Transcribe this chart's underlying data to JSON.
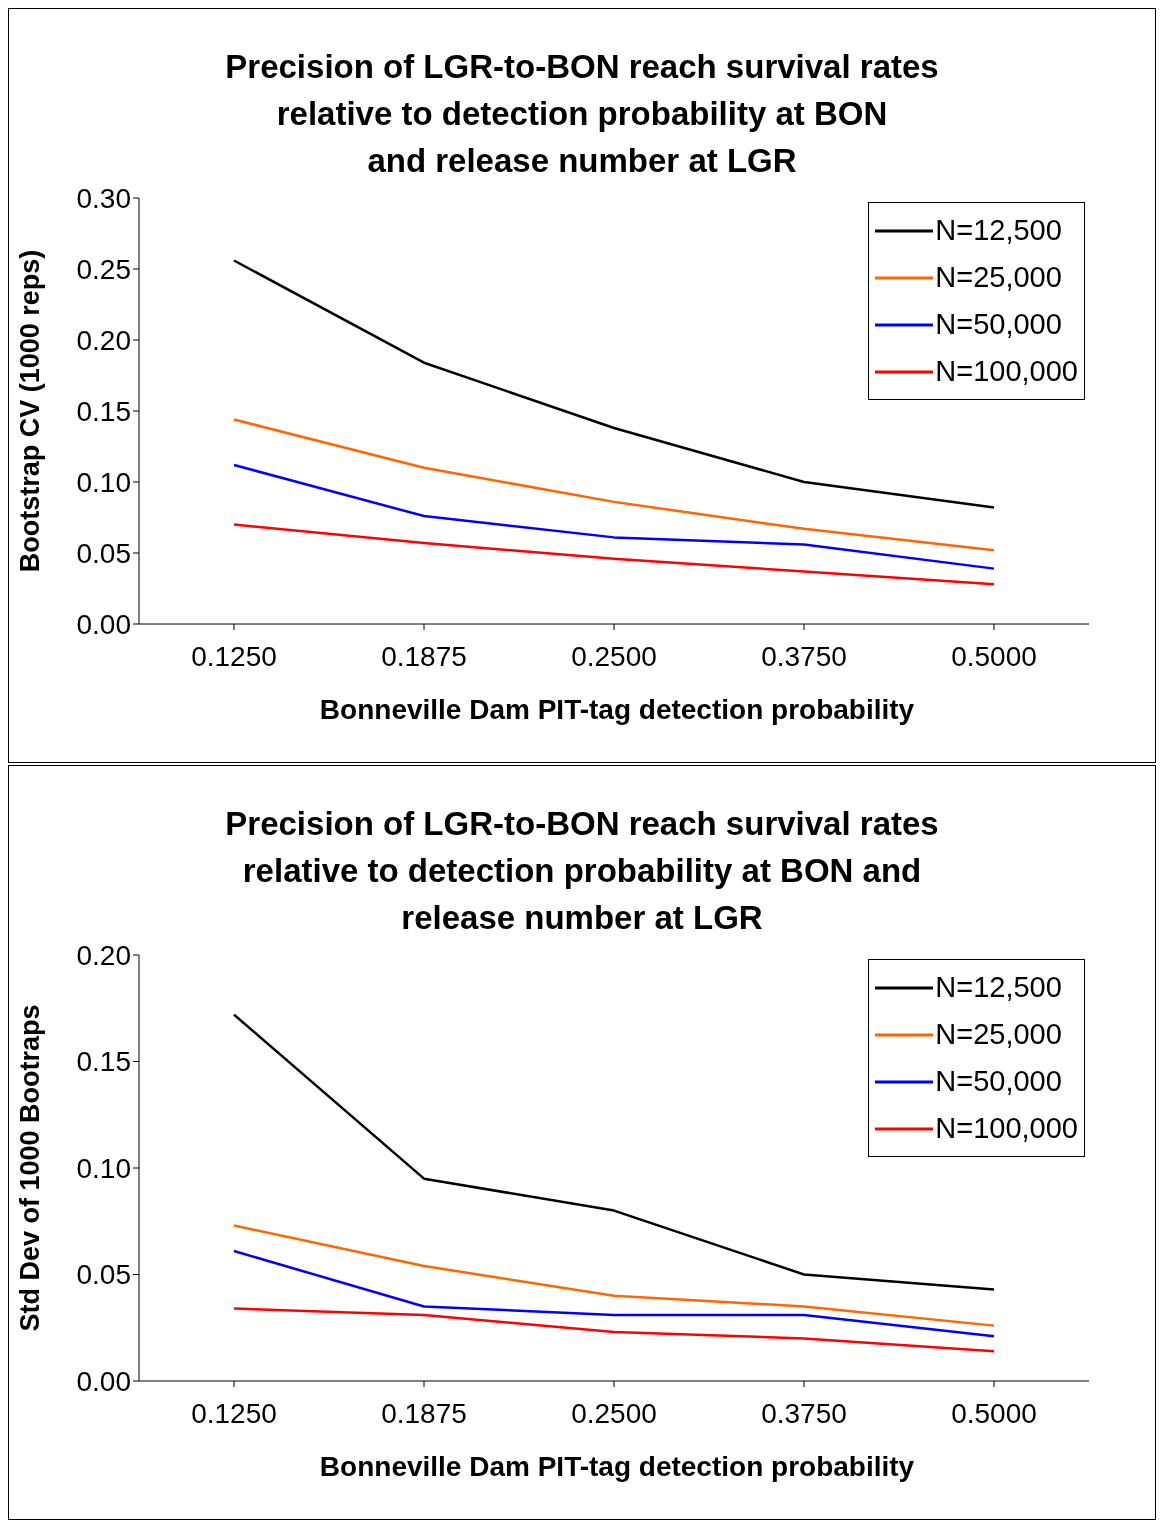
{
  "chart_data": [
    {
      "type": "line",
      "title": "Precision of LGR-to-BON reach survival rates\nrelative to detection probability at BON\nand release number at LGR",
      "xlabel": "Bonneville Dam PIT-tag detection probability",
      "ylabel": "Bootstrap CV (1000 reps)",
      "categories": [
        "0.1250",
        "0.1875",
        "0.2500",
        "0.3750",
        "0.5000"
      ],
      "series": [
        {
          "name": "N=12,500",
          "color": "#000000",
          "values": [
            0.256,
            0.184,
            0.138,
            0.1,
            0.082
          ]
        },
        {
          "name": "N=25,000",
          "color": "#ff6600",
          "values": [
            0.144,
            0.11,
            0.086,
            0.067,
            0.052
          ]
        },
        {
          "name": "N=50,000",
          "color": "#0000ff",
          "values": [
            0.112,
            0.076,
            0.061,
            0.056,
            0.039
          ]
        },
        {
          "name": "N=100,000",
          "color": "#ff0000",
          "values": [
            0.07,
            0.057,
            0.046,
            0.037,
            0.028
          ]
        }
      ],
      "ylim": [
        0,
        0.3
      ],
      "yticks": [
        {
          "value": 0,
          "label": "0.00"
        },
        {
          "value": 0.05,
          "label": "0.05"
        },
        {
          "value": 0.1,
          "label": "0.10"
        },
        {
          "value": 0.15,
          "label": "0.15"
        },
        {
          "value": 0.2,
          "label": "0.20"
        },
        {
          "value": 0.25,
          "label": "0.25"
        },
        {
          "value": 0.3,
          "label": "0.30"
        }
      ],
      "grid": false,
      "legend": "top right",
      "marker": "none",
      "line_style": "solid"
    },
    {
      "type": "line",
      "title": "Precision of LGR-to-BON reach survival rates\nrelative to detection probability at BON and\nrelease number at LGR",
      "xlabel": "Bonneville Dam PIT-tag detection probability",
      "ylabel": "Std Dev of 1000 Bootraps",
      "categories": [
        "0.1250",
        "0.1875",
        "0.2500",
        "0.3750",
        "0.5000"
      ],
      "series": [
        {
          "name": "N=12,500",
          "color": "#000000",
          "values": [
            0.172,
            0.095,
            0.08,
            0.05,
            0.043
          ]
        },
        {
          "name": "N=25,000",
          "color": "#ff6600",
          "values": [
            0.073,
            0.054,
            0.04,
            0.035,
            0.026
          ]
        },
        {
          "name": "N=50,000",
          "color": "#0000ff",
          "values": [
            0.061,
            0.035,
            0.031,
            0.031,
            0.021
          ]
        },
        {
          "name": "N=100,000",
          "color": "#ff0000",
          "values": [
            0.034,
            0.031,
            0.023,
            0.02,
            0.014
          ]
        }
      ],
      "ylim": [
        0,
        0.2
      ],
      "yticks": [
        {
          "value": 0,
          "label": "0.00"
        },
        {
          "value": 0.05,
          "label": "0.05"
        },
        {
          "value": 0.1,
          "label": "0.10"
        },
        {
          "value": 0.15,
          "label": "0.15"
        },
        {
          "value": 0.2,
          "label": "0.20"
        }
      ],
      "grid": false,
      "legend": "top right",
      "marker": "none",
      "line_style": "solid"
    }
  ]
}
